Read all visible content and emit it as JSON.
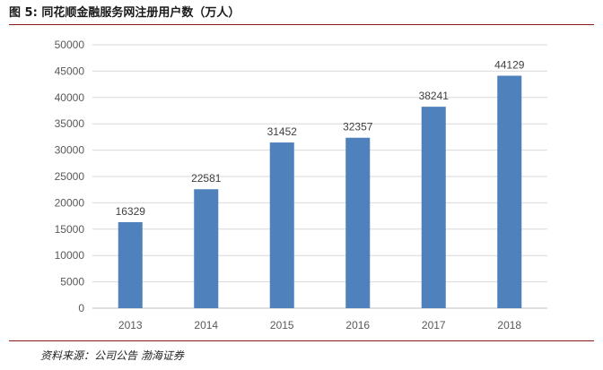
{
  "figure": {
    "label": "图 5:",
    "title": "同花顺金融服务网注册用户数（万人）"
  },
  "source": "资料来源：公司公告 渤海证券",
  "colors": {
    "bar": "#4F81BD",
    "accent_rule": "#8B1A1A",
    "axis": "#BFBFBF",
    "grid": "#D9D9D9",
    "tick_text": "#595959",
    "label_text": "#404040"
  },
  "chart_data": {
    "type": "bar",
    "categories": [
      "2013",
      "2014",
      "2015",
      "2016",
      "2017",
      "2018"
    ],
    "values": [
      16329,
      22581,
      31452,
      32357,
      38241,
      44129
    ],
    "data_labels": [
      "16329",
      "22581",
      "31452",
      "32357",
      "38241",
      "44129"
    ],
    "yticks": [
      "0",
      "5000",
      "10000",
      "15000",
      "20000",
      "25000",
      "30000",
      "35000",
      "40000",
      "45000",
      "50000"
    ],
    "ylim": [
      0,
      50000
    ],
    "title": "",
    "xlabel": "",
    "ylabel": "",
    "grid": true,
    "legend": "none"
  }
}
